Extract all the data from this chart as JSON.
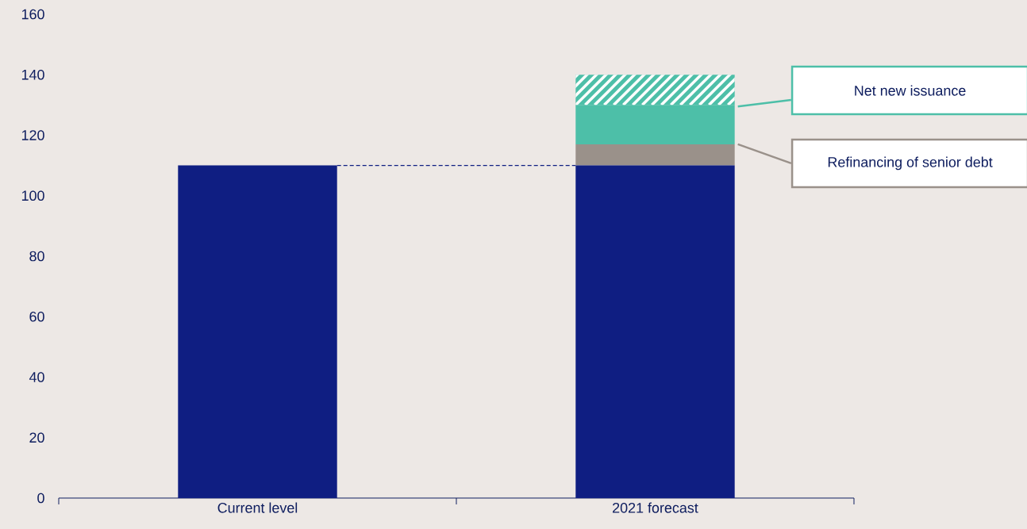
{
  "chart_data": {
    "type": "bar",
    "stacked": true,
    "categories": [
      "Current level",
      "2021 forecast"
    ],
    "series": [
      {
        "color": "#0f1e82",
        "values": [
          110,
          110
        ]
      },
      {
        "name": "Refinancing of senior debt",
        "color": "#9a918a",
        "values": [
          0,
          7
        ]
      },
      {
        "name": "Net new issuance",
        "color": "#4dbfa8",
        "values": [
          0,
          13
        ]
      },
      {
        "color": "#4dbfa8",
        "values": [
          0,
          10
        ]
      }
    ],
    "ylim": [
      0,
      160
    ],
    "yticks": [
      0,
      20,
      40,
      60,
      80,
      100,
      120,
      140,
      160
    ],
    "ref_lines": [
      {
        "axis": "y",
        "value": 110,
        "color": "#0f1e82",
        "line_style": "dashed"
      }
    ],
    "grid": false
  }
}
